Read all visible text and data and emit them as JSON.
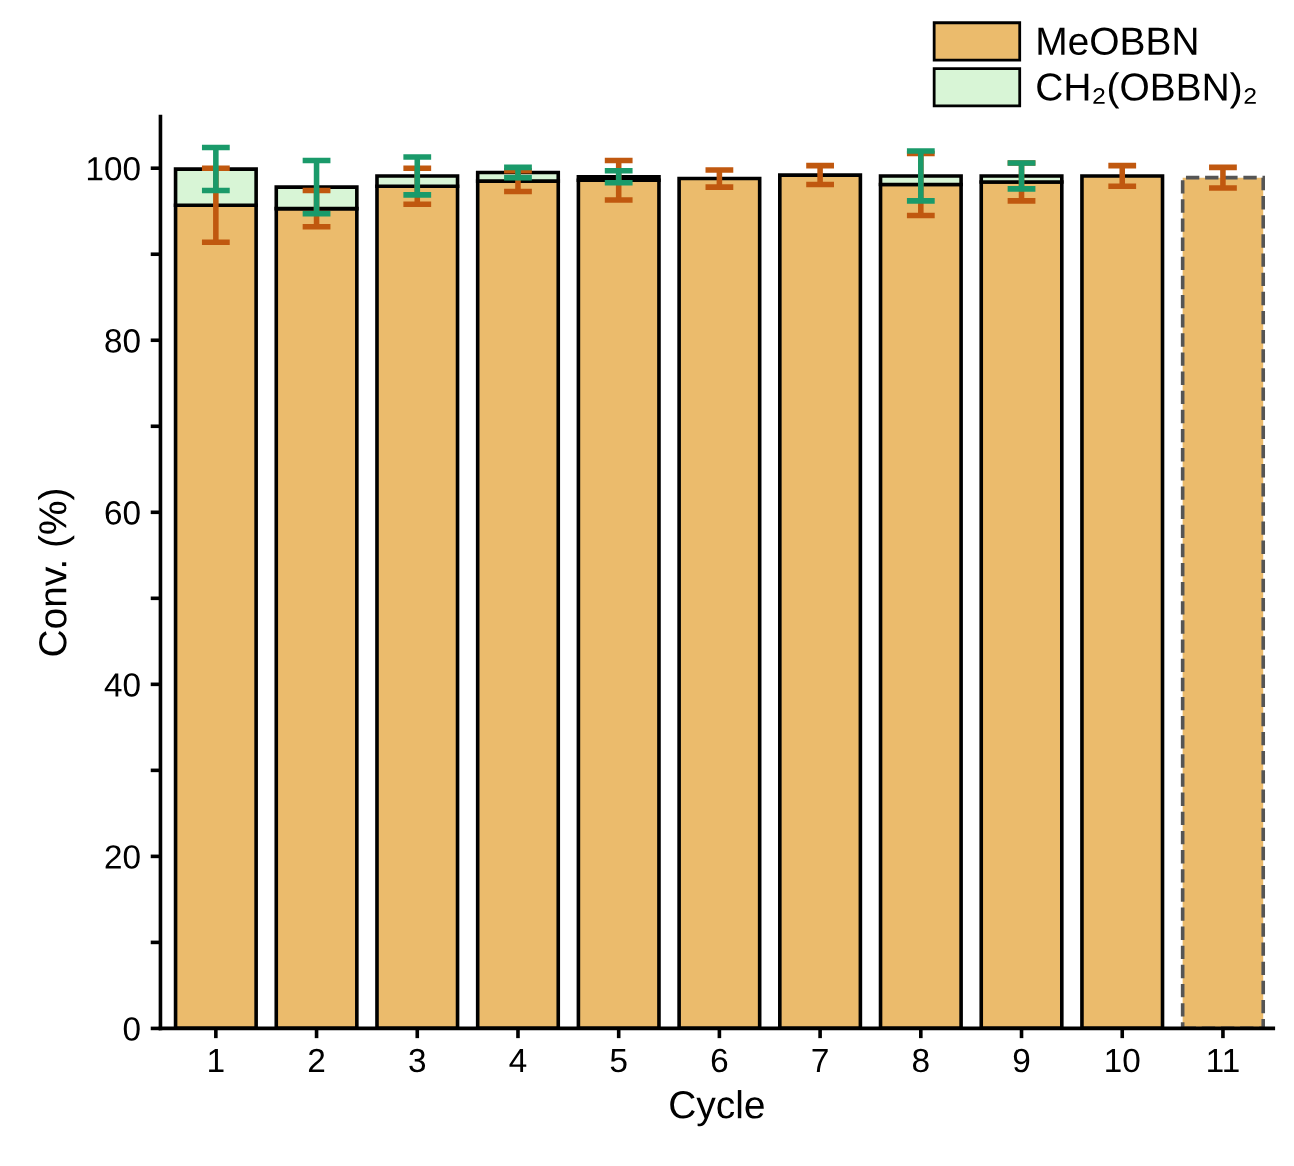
{
  "chart_data": {
    "type": "bar",
    "stacked": true,
    "xlabel": "Cycle",
    "ylabel": "Conv. (%)",
    "categories": [
      "1",
      "2",
      "3",
      "4",
      "5",
      "6",
      "7",
      "8",
      "9",
      "10",
      "11"
    ],
    "series": [
      {
        "name": "MeOBBN",
        "color": "#ebbb6c",
        "values": [
          95.7,
          95.3,
          97.9,
          98.5,
          98.6,
          98.8,
          99.2,
          98.1,
          98.4,
          99.1,
          null
        ],
        "errors": [
          4.3,
          2.1,
          2.1,
          1.2,
          2.3,
          1.0,
          1.1,
          3.6,
          2.2,
          1.2,
          null
        ]
      },
      {
        "name": "CH₂(OBBN)₂",
        "color": "#d8f5d6",
        "values": [
          4.2,
          2.5,
          1.2,
          1.0,
          0.4,
          null,
          null,
          1.0,
          0.7,
          null,
          null
        ],
        "errors": [
          2.5,
          3.1,
          2.2,
          0.6,
          0.7,
          null,
          null,
          2.9,
          1.5,
          null,
          null
        ]
      },
      {
        "color": "#ebbb6c",
        "line_style": "dashed",
        "values": [
          null,
          null,
          null,
          null,
          null,
          null,
          null,
          null,
          null,
          null,
          98.9
        ],
        "errors": [
          null,
          null,
          null,
          null,
          null,
          null,
          null,
          null,
          null,
          null,
          1.2
        ]
      }
    ],
    "ylim": [
      0,
      106
    ],
    "yticks": [
      0,
      {
        "value": 10,
        "label": null
      },
      20,
      {
        "value": 30,
        "label": null
      },
      40,
      {
        "value": 50,
        "label": null
      },
      60,
      {
        "value": 70,
        "label": null
      },
      80,
      {
        "value": 90,
        "label": null
      },
      100
    ],
    "legend": "top right",
    "grid": false
  }
}
